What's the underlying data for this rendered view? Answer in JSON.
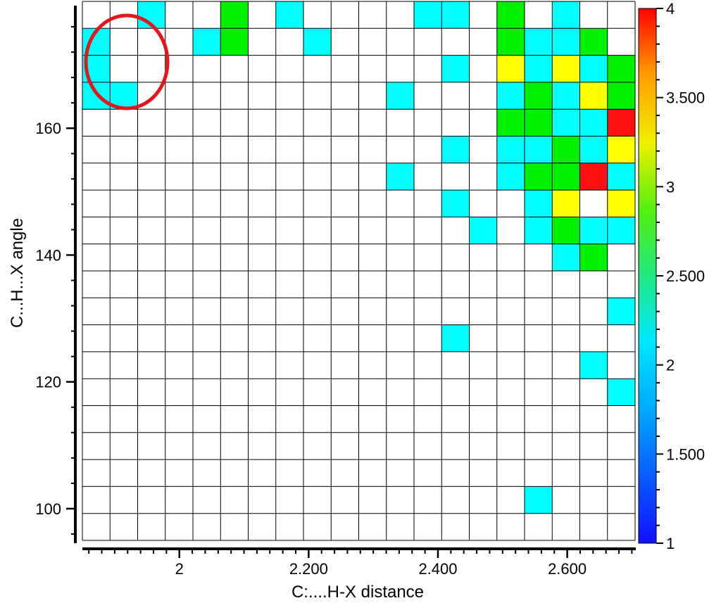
{
  "chart_data": {
    "type": "heatmap",
    "title": "",
    "xlabel": "C:....H-X distance",
    "ylabel": "C...H...X angle",
    "x_tick_labels": [
      "2",
      "2.200",
      "2.400",
      "2.600"
    ],
    "y_tick_labels": [
      "160",
      "140",
      "120",
      "100"
    ],
    "x_ticks": [
      2.0,
      2.2,
      2.4,
      2.6
    ],
    "y_ticks": [
      160,
      140,
      120,
      100
    ],
    "xlim": [
      1.85,
      2.705
    ],
    "ylim": [
      95,
      180
    ],
    "x_bins": [
      1.875,
      1.918,
      1.962,
      2.005,
      2.048,
      2.092,
      2.135,
      2.178,
      2.222,
      2.265,
      2.308,
      2.352,
      2.395,
      2.438,
      2.482,
      2.525,
      2.568,
      2.612,
      2.655,
      2.698
    ],
    "y_bins": [
      178.1,
      173.9,
      169.7,
      165.5,
      161.3,
      157.1,
      152.9,
      148.7,
      144.5,
      140.3,
      136.1,
      131.9,
      127.7,
      123.5,
      119.3,
      115.1,
      110.9,
      106.7,
      102.5,
      98.3
    ],
    "cells": [
      [
        0,
        2,
        1.6
      ],
      [
        0,
        5,
        2.0
      ],
      [
        0,
        7,
        1.6
      ],
      [
        0,
        12,
        1.6
      ],
      [
        0,
        13,
        1.6
      ],
      [
        0,
        15,
        2.0
      ],
      [
        0,
        17,
        1.6
      ],
      [
        1,
        0,
        1.6
      ],
      [
        1,
        4,
        1.6
      ],
      [
        1,
        5,
        2.0
      ],
      [
        1,
        8,
        1.6
      ],
      [
        1,
        15,
        2.0
      ],
      [
        1,
        16,
        1.6
      ],
      [
        1,
        17,
        1.6
      ],
      [
        1,
        18,
        2.0
      ],
      [
        2,
        0,
        1.6
      ],
      [
        2,
        13,
        1.6
      ],
      [
        2,
        15,
        3.0
      ],
      [
        2,
        16,
        1.6
      ],
      [
        2,
        17,
        3.0
      ],
      [
        2,
        18,
        1.6
      ],
      [
        2,
        19,
        2.0
      ],
      [
        3,
        0,
        1.6
      ],
      [
        3,
        1,
        1.6
      ],
      [
        3,
        11,
        1.6
      ],
      [
        3,
        15,
        1.6
      ],
      [
        3,
        16,
        2.0
      ],
      [
        3,
        17,
        1.6
      ],
      [
        3,
        18,
        3.0
      ],
      [
        3,
        19,
        2.0
      ],
      [
        4,
        15,
        2.0
      ],
      [
        4,
        16,
        2.0
      ],
      [
        4,
        17,
        1.6
      ],
      [
        4,
        18,
        1.6
      ],
      [
        4,
        19,
        4.0
      ],
      [
        5,
        13,
        1.6
      ],
      [
        5,
        15,
        1.6
      ],
      [
        5,
        16,
        1.6
      ],
      [
        5,
        17,
        2.0
      ],
      [
        5,
        18,
        1.6
      ],
      [
        5,
        19,
        3.0
      ],
      [
        6,
        11,
        1.6
      ],
      [
        6,
        15,
        1.6
      ],
      [
        6,
        16,
        2.0
      ],
      [
        6,
        17,
        2.0
      ],
      [
        6,
        18,
        4.0
      ],
      [
        6,
        19,
        1.6
      ],
      [
        7,
        13,
        1.6
      ],
      [
        7,
        16,
        1.6
      ],
      [
        7,
        17,
        3.0
      ],
      [
        7,
        19,
        3.0
      ],
      [
        8,
        14,
        1.6
      ],
      [
        8,
        16,
        1.6
      ],
      [
        8,
        17,
        2.0
      ],
      [
        8,
        18,
        1.6
      ],
      [
        8,
        19,
        1.6
      ],
      [
        9,
        17,
        1.6
      ],
      [
        9,
        18,
        2.0
      ],
      [
        11,
        19,
        1.6
      ],
      [
        12,
        13,
        1.6
      ],
      [
        13,
        18,
        1.6
      ],
      [
        14,
        19,
        1.6
      ],
      [
        18,
        16,
        1.6
      ]
    ],
    "colorbar": {
      "min": 1,
      "max": 4,
      "tick_labels": [
        "4",
        "3.500",
        "3",
        "2.500",
        "2",
        "1.500",
        "1"
      ],
      "tick_values": [
        4,
        3.5,
        3,
        2.5,
        2,
        1.5,
        1
      ]
    },
    "annotation": {
      "shape": "ellipse",
      "color": "#e8141a"
    }
  }
}
